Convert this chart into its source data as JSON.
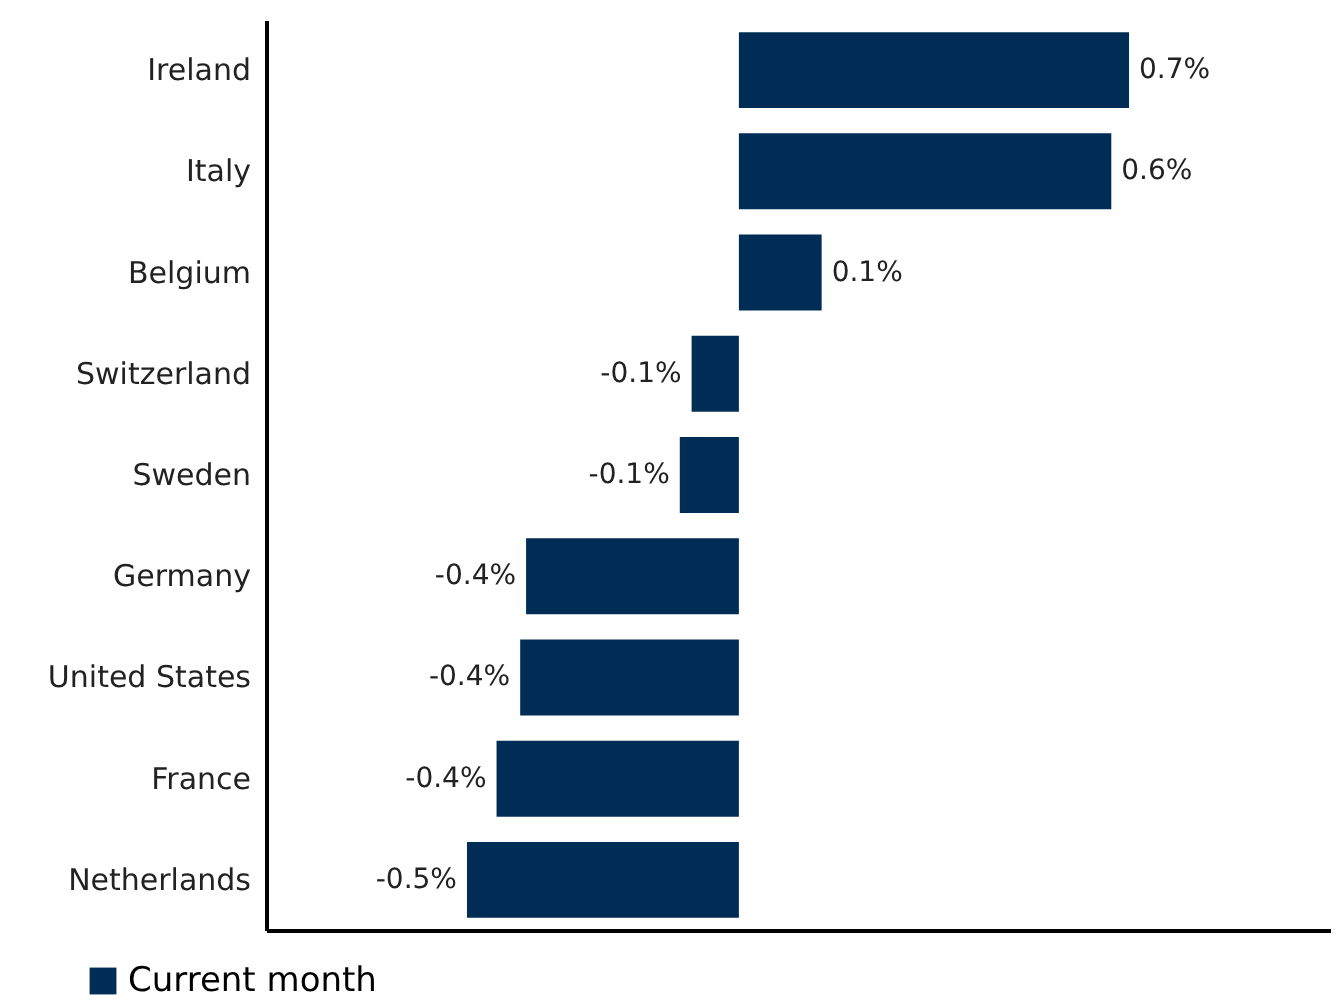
{
  "chart_data": {
    "type": "bar",
    "orientation": "horizontal",
    "categories": [
      "Ireland",
      "Italy",
      "Belgium",
      "Switzerland",
      "Sweden",
      "Germany",
      "United States",
      "France",
      "Netherlands"
    ],
    "series": [
      {
        "name": "Current month",
        "color": "#002d56",
        "values": [
          0.66,
          0.63,
          0.14,
          -0.08,
          -0.1,
          -0.36,
          -0.37,
          -0.41,
          -0.46
        ],
        "value_labels": [
          "0.7%",
          "0.6%",
          "0.1%",
          "-0.1%",
          "-0.1%",
          "-0.4%",
          "-0.4%",
          "-0.4%",
          "-0.5%"
        ]
      }
    ],
    "xlim": [
      -0.8,
      1.0
    ],
    "tick_labels": "y",
    "legend": "bottom left"
  }
}
